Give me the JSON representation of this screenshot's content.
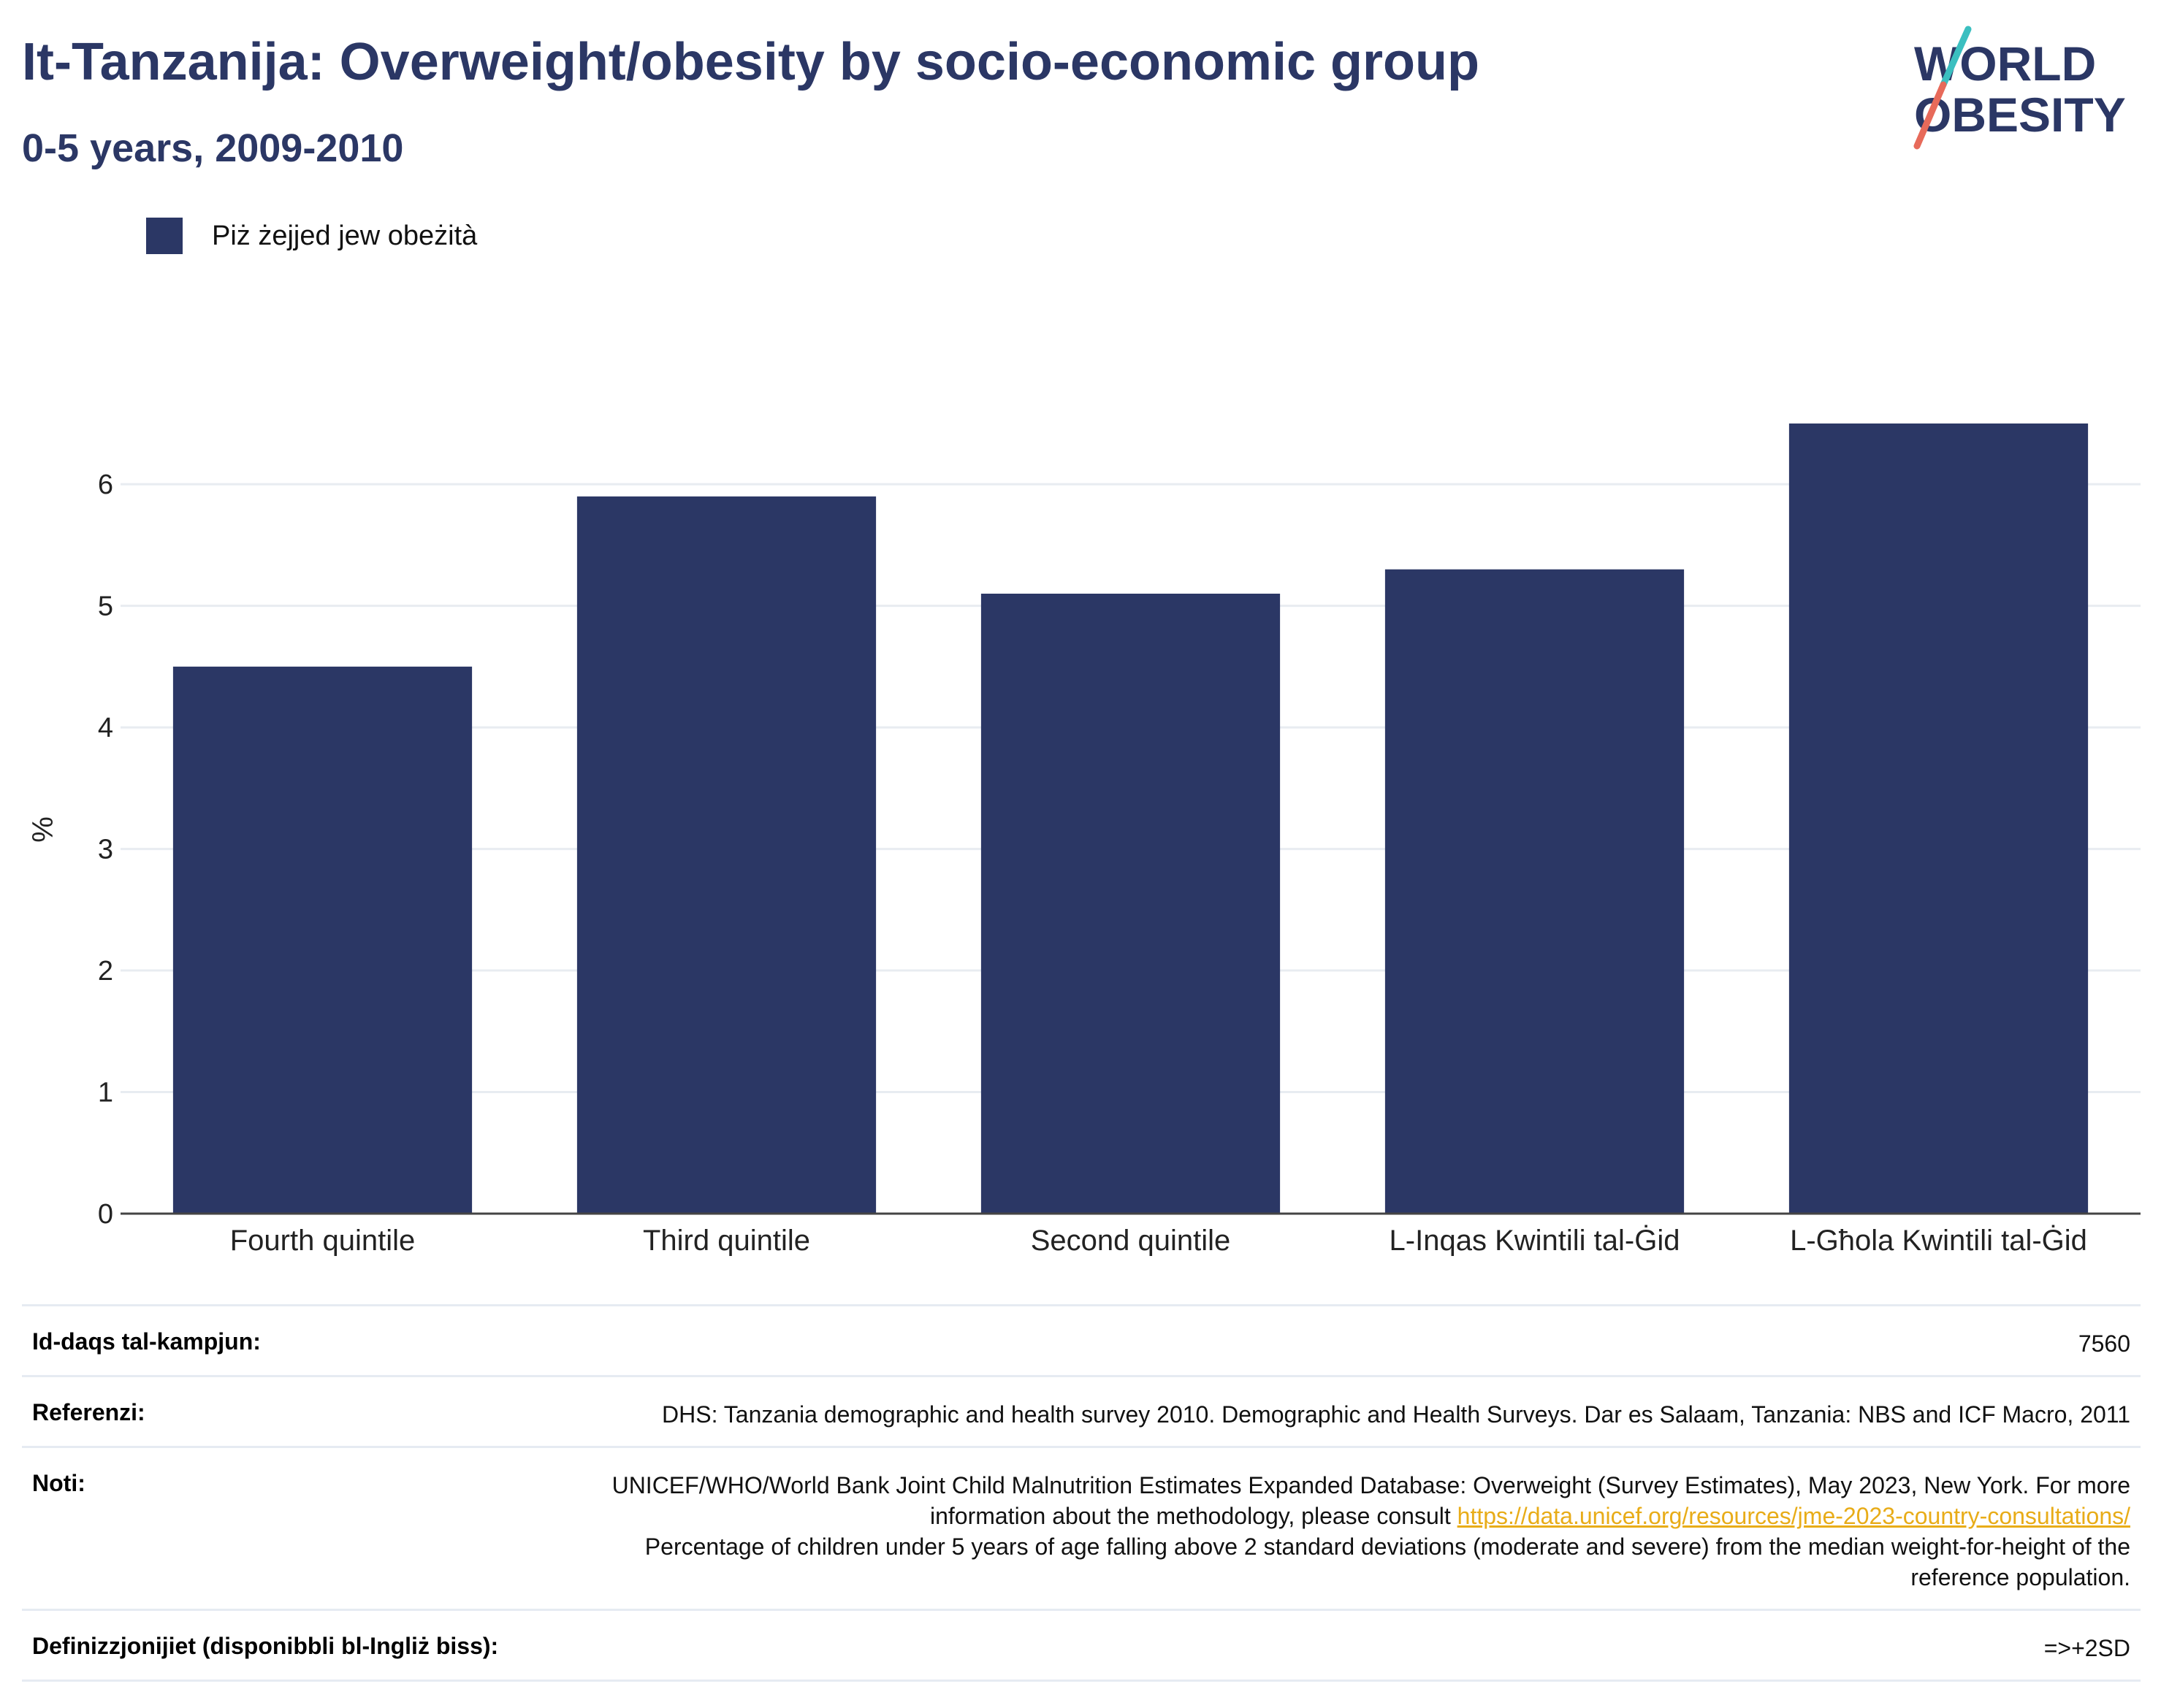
{
  "header": {
    "title": "It-Tanzanija: Overweight/obesity by socio-economic group",
    "subtitle": "0-5 years, 2009-2010"
  },
  "logo": {
    "line1": "WORLD",
    "line2": "OBESITY",
    "colors": {
      "text": "#2b3765",
      "slash_teal": "#3bbfc0",
      "slash_coral": "#e76a5a"
    }
  },
  "legend": {
    "label": "Piż żejjed jew obeżità",
    "color": "#2b3765"
  },
  "chart_data": {
    "type": "bar",
    "categories": [
      "Fourth quintile",
      "Third quintile",
      "Second quintile",
      "L-Inqas Kwintili tal-Ġid",
      "L-Għola Kwintili tal-Ġid"
    ],
    "series": [
      {
        "name": "Piż żejjed jew obeżità",
        "values": [
          4.5,
          5.9,
          5.1,
          5.3,
          6.5
        ],
        "color": "#2b3765"
      }
    ],
    "ylabel": "%",
    "xlabel": "",
    "ylim": [
      0,
      6.8
    ],
    "yticks": [
      0,
      1,
      2,
      3,
      4,
      5,
      6
    ],
    "grid": true
  },
  "info": {
    "sample_label": "Id-daqs tal-kampjun:",
    "sample_value": "7560",
    "ref_label": "Referenzi:",
    "ref_value": "DHS: Tanzania demographic and health survey 2010. Demographic and Health Surveys. Dar es Salaam, Tanzania: NBS and ICF Macro, 2011",
    "notes_label": "Noti:",
    "notes_part1": "UNICEF/WHO/World Bank Joint Child Malnutrition Estimates Expanded Database: Overweight (Survey Estimates), May 2023, New York. For more information about the methodology, please consult",
    "notes_link": "https://data.unicef.org/resources/jme-2023-country-consultations/",
    "notes_part2": "Percentage of children under 5 years of age falling above 2 standard deviations (moderate and severe) from the median weight-for-height of the reference population.",
    "def_label": "Definizzjonijiet (disponibbli bl-Ingliż biss):",
    "def_value": "=>+2SD"
  }
}
